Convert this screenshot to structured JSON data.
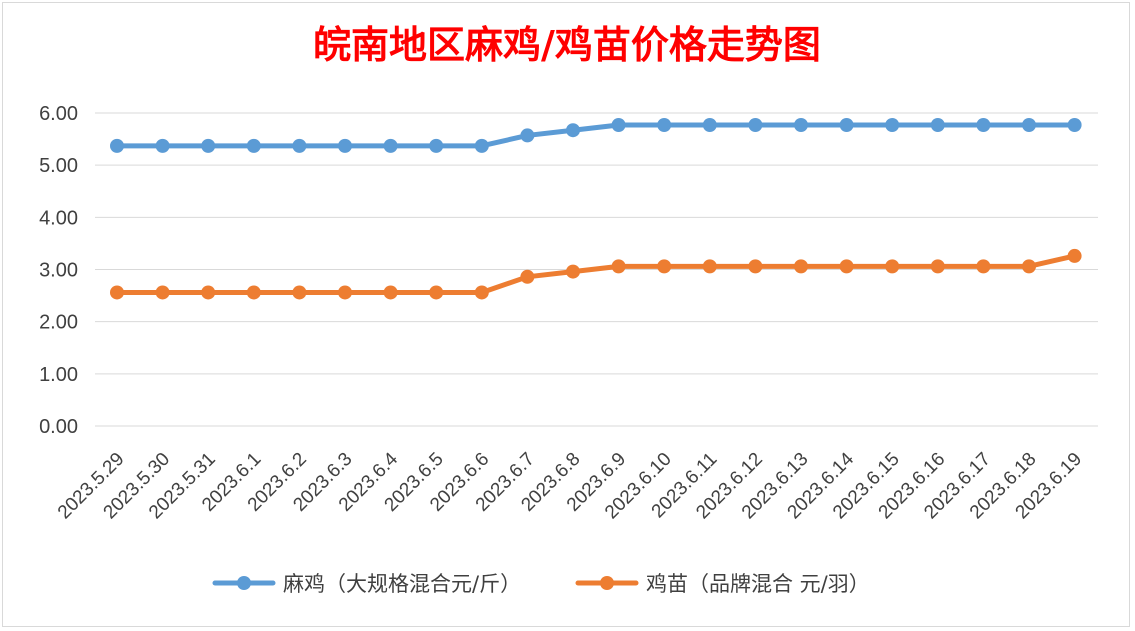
{
  "chart_data": {
    "type": "line",
    "title": "皖南地区麻鸡/鸡苗价格走势图",
    "x": [
      "2023.5.29",
      "2023.5.30",
      "2023.5.31",
      "2023.6.1",
      "2023.6.2",
      "2023.6.3",
      "2023.6.4",
      "2023.6.5",
      "2023.6.6",
      "2023.6.7",
      "2023.6.8",
      "2023.6.9",
      "2023.6.10",
      "2023.6.11",
      "2023.6.12",
      "2023.6.13",
      "2023.6.14",
      "2023.6.15",
      "2023.6.16",
      "2023.6.17",
      "2023.6.18",
      "2023.6.19"
    ],
    "ylim": [
      0,
      6
    ],
    "yticks": [
      "0.00",
      "1.00",
      "2.00",
      "3.00",
      "4.00",
      "5.00",
      "6.00"
    ],
    "grid": true,
    "legend_position": "bottom",
    "series": [
      {
        "name": "麻鸡（大规格混合元/斤）",
        "color": "#5b9bd5",
        "values": [
          5.37,
          5.37,
          5.37,
          5.37,
          5.37,
          5.37,
          5.37,
          5.37,
          5.37,
          5.57,
          5.67,
          5.77,
          5.77,
          5.77,
          5.77,
          5.77,
          5.77,
          5.77,
          5.77,
          5.77,
          5.77,
          5.77
        ]
      },
      {
        "name": "鸡苗（品牌混合 元/羽）",
        "color": "#ed7d31",
        "values": [
          2.56,
          2.56,
          2.56,
          2.56,
          2.56,
          2.56,
          2.56,
          2.56,
          2.56,
          2.86,
          2.96,
          3.06,
          3.06,
          3.06,
          3.06,
          3.06,
          3.06,
          3.06,
          3.06,
          3.06,
          3.06,
          3.26
        ]
      }
    ]
  }
}
